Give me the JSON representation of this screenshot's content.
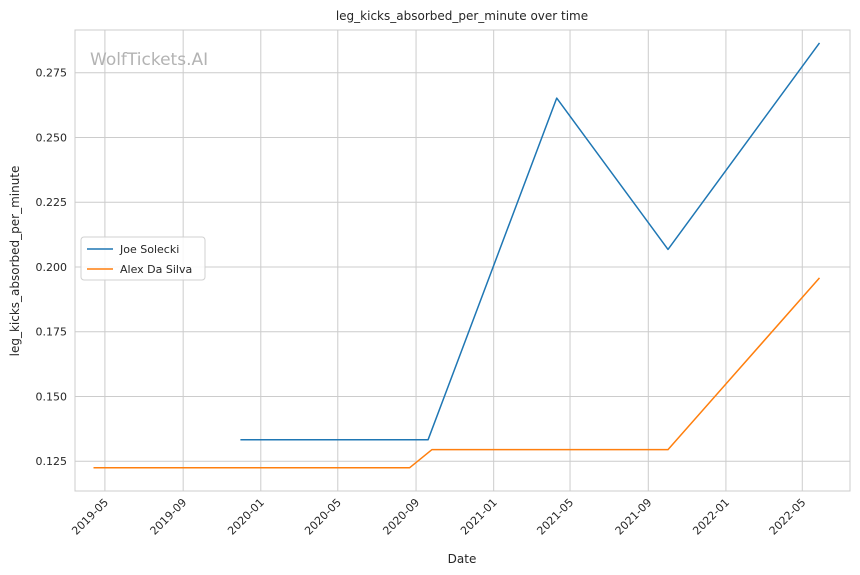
{
  "watermark": "WolfTickets.AI",
  "chart_data": {
    "type": "line",
    "title": "leg_kicks_absorbed_per_minute over time",
    "xlabel": "Date",
    "ylabel": "leg_kicks_absorbed_per_minute",
    "x_ticks": [
      "2019-05",
      "2019-09",
      "2020-01",
      "2020-05",
      "2020-09",
      "2021-01",
      "2021-05",
      "2021-09",
      "2022-01",
      "2022-05"
    ],
    "y_ticks": [
      "0.125",
      "0.150",
      "0.175",
      "0.200",
      "0.225",
      "0.250",
      "0.275"
    ],
    "xlim": [
      "2019-03-15",
      "2022-07-15"
    ],
    "ylim": [
      0.1135,
      0.2915
    ],
    "grid": true,
    "legend_position": "center-left",
    "series": [
      {
        "name": "Joe Solecki",
        "color": "#1f77b4",
        "points": [
          {
            "x": "2019-11-30",
            "y": 0.1333
          },
          {
            "x": "2020-09-20",
            "y": 0.1333
          },
          {
            "x": "2021-04-10",
            "y": 0.2652
          },
          {
            "x": "2021-10-02",
            "y": 0.2068
          },
          {
            "x": "2022-05-28",
            "y": 0.2865
          }
        ]
      },
      {
        "name": "Alex Da Silva",
        "color": "#ff7f0e",
        "points": [
          {
            "x": "2019-04-13",
            "y": 0.1225
          },
          {
            "x": "2020-08-22",
            "y": 0.1225
          },
          {
            "x": "2020-09-26",
            "y": 0.1295
          },
          {
            "x": "2021-10-02",
            "y": 0.1295
          },
          {
            "x": "2022-05-28",
            "y": 0.1958
          }
        ]
      }
    ]
  }
}
